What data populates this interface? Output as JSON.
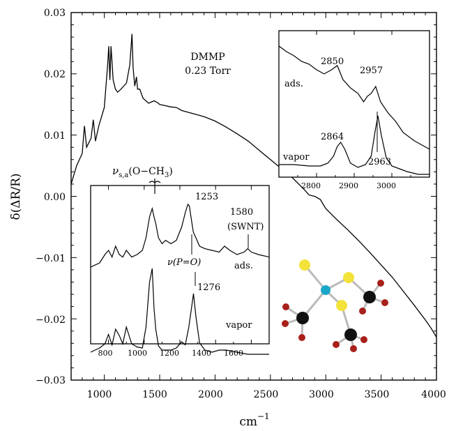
{
  "chart_data": [
    {
      "type": "line",
      "xlabel": "cm",
      "xlabel_exp": "−1",
      "ylabel": "δ(ΔR/R)",
      "xlim": [
        700,
        4000
      ],
      "ylim": [
        -0.03,
        0.03
      ],
      "xticks": [
        "1000",
        "1500",
        "2000",
        "2500",
        "3000",
        "3500",
        "4000"
      ],
      "yticks": [
        "0.03",
        "0.02",
        "0.01",
        "0.00",
        "−0.01",
        "−0.02",
        "−0.03"
      ],
      "annotation": [
        "DMMP",
        "0.23 Torr"
      ],
      "series": [
        {
          "x": [
            700,
            750,
            800,
            820,
            840,
            880,
            900,
            920,
            950,
            1000,
            1030,
            1040,
            1050,
            1060,
            1080,
            1100,
            1120,
            1150,
            1200,
            1230,
            1250,
            1260,
            1275,
            1290,
            1300,
            1320,
            1330,
            1350,
            1400,
            1450,
            1480,
            1500,
            1550,
            1600,
            1650,
            1700,
            1800,
            1900,
            2000,
            2100,
            2200,
            2300,
            2400,
            2500,
            2600,
            2700,
            2800,
            2850,
            2900,
            2950,
            3000,
            3100,
            3200,
            3300,
            3400,
            3500,
            3600,
            3700,
            3800,
            3900,
            3950,
            4000
          ],
          "y": [
            0.002,
            0.005,
            0.007,
            0.0115,
            0.008,
            0.0095,
            0.0125,
            0.009,
            0.0115,
            0.0145,
            0.0215,
            0.0245,
            0.019,
            0.0245,
            0.019,
            0.0175,
            0.017,
            0.0175,
            0.0185,
            0.0215,
            0.0265,
            0.021,
            0.018,
            0.0195,
            0.0175,
            0.0175,
            0.017,
            0.016,
            0.0152,
            0.0156,
            0.0153,
            0.015,
            0.0148,
            0.0146,
            0.0145,
            0.014,
            0.0135,
            0.013,
            0.0123,
            0.0113,
            0.0102,
            0.009,
            0.0075,
            0.006,
            0.0045,
            0.003,
            0.0012,
            0.0002,
            0.0,
            -0.0005,
            -0.002,
            -0.0038,
            -0.0055,
            -0.0073,
            -0.0092,
            -0.0112,
            -0.0132,
            -0.0155,
            -0.0178,
            -0.0202,
            -0.0215,
            -0.023
          ]
        }
      ]
    },
    {
      "type": "line",
      "xlim": [
        700,
        1700
      ],
      "xticks": [
        "800",
        "1000",
        "1200",
        "1400",
        "1600"
      ],
      "annotations": [
        "1253",
        "1580",
        "(SWNT)",
        "ads.",
        "ν(P=O)",
        "1276",
        "vapor"
      ],
      "top_label": "ν",
      "top_label_sub": "s,a",
      "top_label_rest": "(O−CH",
      "top_label_sub2": "3",
      "top_label_end": ")",
      "series": [
        {
          "name": "ads.",
          "x": [
            700,
            750,
            780,
            800,
            820,
            840,
            860,
            880,
            900,
            930,
            960,
            990,
            1010,
            1030,
            1045,
            1055,
            1065,
            1080,
            1100,
            1120,
            1150,
            1180,
            1210,
            1230,
            1245,
            1253,
            1262,
            1275,
            1290,
            1310,
            1340,
            1380,
            1420,
            1450,
            1480,
            1520,
            1560,
            1580,
            1600,
            1640,
            1700
          ],
          "y": [
            0.1,
            0.15,
            0.25,
            0.3,
            0.22,
            0.35,
            0.25,
            0.22,
            0.3,
            0.22,
            0.25,
            0.3,
            0.45,
            0.7,
            0.8,
            0.7,
            0.62,
            0.45,
            0.38,
            0.42,
            0.38,
            0.42,
            0.58,
            0.75,
            0.85,
            0.83,
            0.7,
            0.52,
            0.45,
            0.35,
            0.32,
            0.3,
            0.28,
            0.35,
            0.3,
            0.25,
            0.28,
            0.32,
            0.28,
            0.25,
            0.22
          ]
        },
        {
          "name": "vapor",
          "x": [
            700,
            750,
            780,
            800,
            820,
            840,
            860,
            880,
            900,
            930,
            960,
            990,
            1010,
            1030,
            1045,
            1055,
            1065,
            1080,
            1100,
            1120,
            1150,
            1180,
            1210,
            1230,
            1250,
            1265,
            1276,
            1290,
            1310,
            1340,
            1380,
            1420,
            1460,
            1520,
            1580,
            1640,
            1700
          ],
          "y": [
            -0.12,
            -0.08,
            -0.04,
            0.05,
            -0.05,
            0.1,
            0.04,
            -0.04,
            0.12,
            -0.04,
            -0.07,
            -0.08,
            0.12,
            0.55,
            0.68,
            0.3,
            0.1,
            -0.06,
            -0.1,
            -0.1,
            -0.1,
            -0.08,
            -0.02,
            -0.05,
            0.12,
            0.3,
            0.44,
            0.22,
            -0.03,
            -0.1,
            -0.12,
            -0.1,
            -0.1,
            -0.12,
            -0.14,
            -0.14,
            -0.14
          ]
        }
      ]
    },
    {
      "type": "line",
      "xlim": [
        2700,
        3100
      ],
      "xticks": [
        "2800",
        "2900",
        "3000"
      ],
      "annotations": [
        "2850",
        "2957",
        "ads.",
        "2864",
        "vapor",
        "2963"
      ],
      "series": [
        {
          "name": "ads.",
          "x": [
            2700,
            2720,
            2740,
            2760,
            2780,
            2800,
            2820,
            2840,
            2855,
            2870,
            2890,
            2910,
            2925,
            2935,
            2945,
            2957,
            2970,
            2990,
            3010,
            3030,
            3060,
            3100
          ],
          "y": [
            0.92,
            0.88,
            0.85,
            0.81,
            0.79,
            0.75,
            0.72,
            0.75,
            0.78,
            0.68,
            0.62,
            0.58,
            0.52,
            0.56,
            0.58,
            0.63,
            0.52,
            0.44,
            0.38,
            0.3,
            0.24,
            0.18
          ]
        },
        {
          "name": "vapor",
          "x": [
            2700,
            2740,
            2780,
            2810,
            2830,
            2845,
            2855,
            2864,
            2875,
            2890,
            2910,
            2930,
            2945,
            2955,
            2963,
            2972,
            2985,
            3000,
            3020,
            3040,
            3070,
            3100
          ],
          "y": [
            0.07,
            0.07,
            0.06,
            0.06,
            0.08,
            0.13,
            0.2,
            0.23,
            0.18,
            0.08,
            0.05,
            0.07,
            0.13,
            0.3,
            0.42,
            0.28,
            0.12,
            0.06,
            0.04,
            0.02,
            0.0,
            0.0
          ]
        }
      ]
    }
  ],
  "colors": {
    "cyan": "#1aa6c9",
    "yellow": "#f3e23a",
    "red": "#a8201a",
    "black": "#111111"
  }
}
